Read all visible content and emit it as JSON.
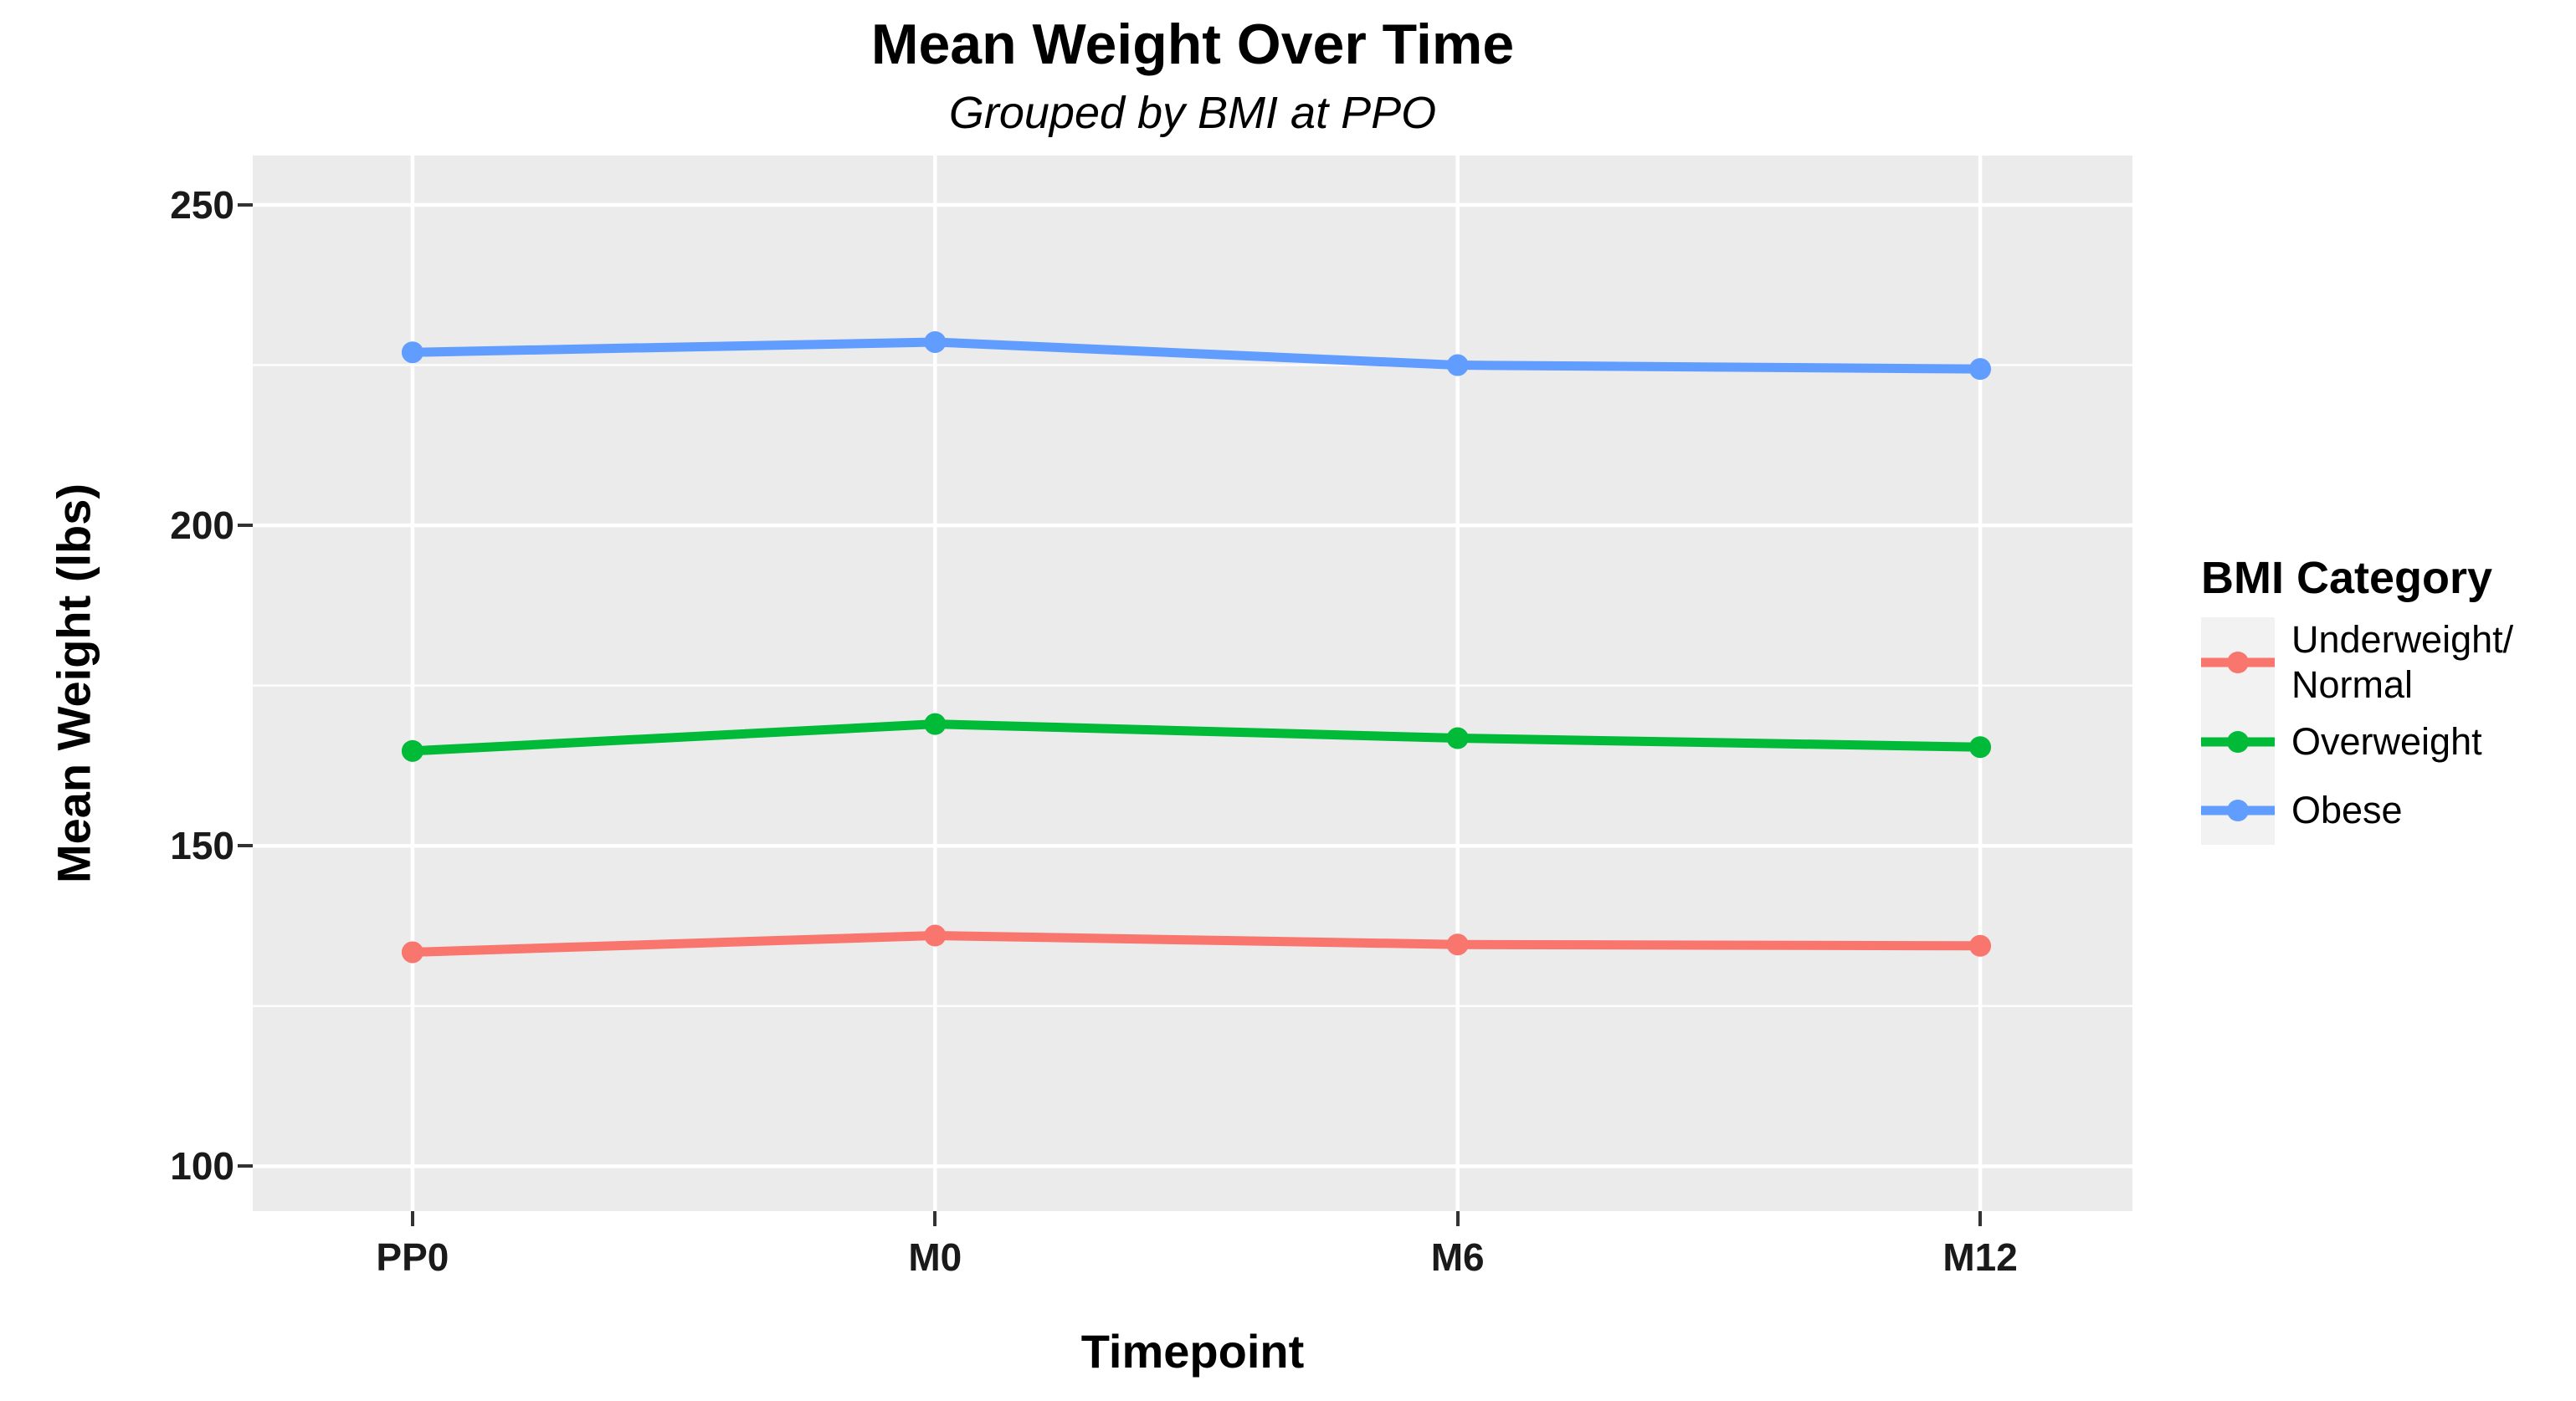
{
  "chart_data": {
    "type": "line",
    "title": "Mean Weight Over Time",
    "subtitle": "Grouped by BMI at PPO",
    "xlabel": "Timepoint",
    "ylabel": "Mean Weight (lbs)",
    "categories": [
      "PP0",
      "M0",
      "M6",
      "M12"
    ],
    "series": [
      {
        "name": "Underweight/Normal",
        "label_lines": [
          "Underweight/",
          "Normal"
        ],
        "color": "#F8766D",
        "values": [
          133.4,
          136.0,
          134.6,
          134.4
        ]
      },
      {
        "name": "Overweight",
        "label_lines": [
          "Overweight"
        ],
        "color": "#00BA38",
        "values": [
          164.8,
          169.0,
          166.8,
          165.4
        ]
      },
      {
        "name": "Obese",
        "label_lines": [
          "Obese"
        ],
        "color": "#619CFF",
        "values": [
          227.0,
          228.6,
          225.0,
          224.4
        ]
      }
    ],
    "y_ticks": [
      250,
      200,
      150,
      100
    ],
    "y_minor_ticks": [
      225,
      175,
      125
    ],
    "ylim": [
      93.0,
      257.7
    ],
    "grid": true,
    "legend_position": "right",
    "legend_title": "BMI Category",
    "panel_bg": "#EBEBEB",
    "grid_color": "#FFFFFF",
    "legend_key_bg": "#F2F2F2"
  }
}
